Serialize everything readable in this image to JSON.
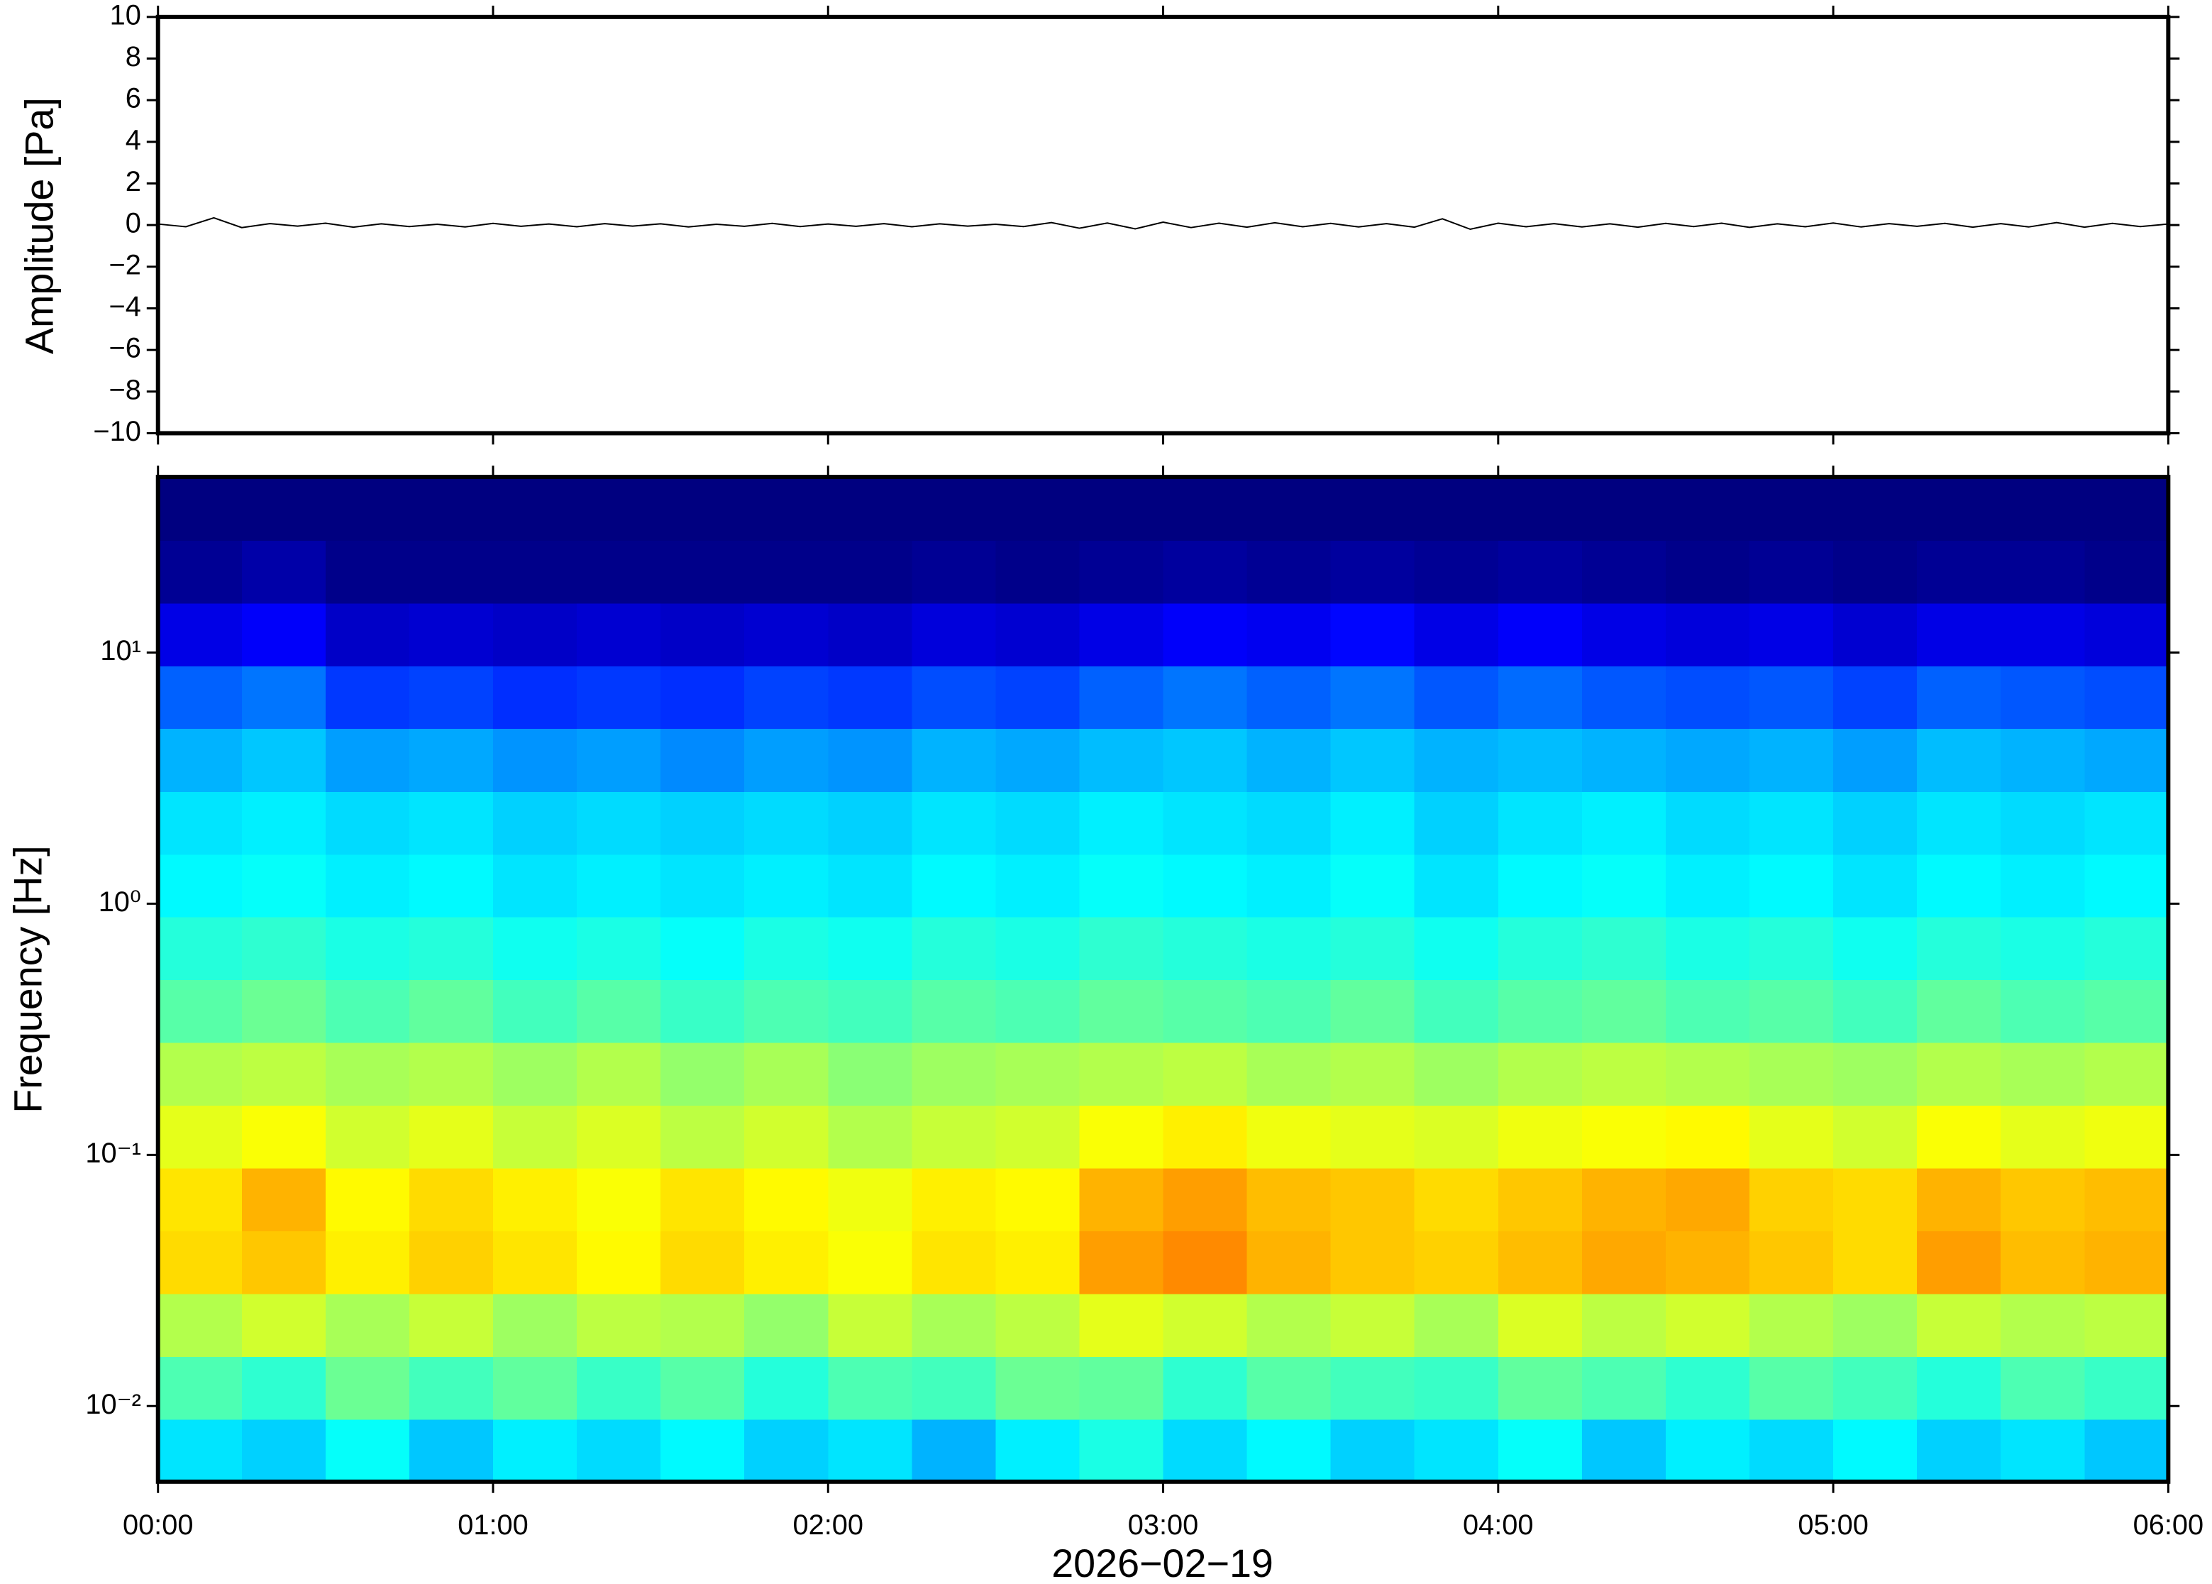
{
  "chart_data": [
    {
      "type": "line",
      "ylabel": "Amplitude [Pa]",
      "color": "#000000",
      "xlim": [
        0,
        360
      ],
      "ylim": [
        -10,
        10
      ],
      "yticks": [
        {
          "value": -10,
          "label": "−10"
        },
        {
          "value": -8,
          "label": "−8"
        },
        {
          "value": -6,
          "label": "−6"
        },
        {
          "value": -4,
          "label": "−4"
        },
        {
          "value": -2,
          "label": "−2"
        },
        0,
        2,
        4,
        6,
        8,
        10
      ],
      "x": [
        0,
        5,
        10,
        15,
        20,
        25,
        30,
        35,
        40,
        45,
        50,
        55,
        60,
        65,
        70,
        75,
        80,
        85,
        90,
        95,
        100,
        105,
        110,
        115,
        120,
        125,
        130,
        135,
        140,
        145,
        150,
        155,
        160,
        165,
        170,
        175,
        180,
        185,
        190,
        195,
        200,
        205,
        210,
        215,
        220,
        225,
        230,
        235,
        240,
        245,
        250,
        255,
        260,
        265,
        270,
        275,
        280,
        285,
        290,
        295,
        300,
        305,
        310,
        315,
        320,
        325,
        330,
        335,
        340,
        345,
        350,
        355,
        360
      ],
      "values": [
        0.05,
        -0.08,
        0.35,
        -0.12,
        0.07,
        -0.05,
        0.09,
        -0.1,
        0.06,
        -0.07,
        0.04,
        -0.09,
        0.08,
        -0.06,
        0.05,
        -0.08,
        0.07,
        -0.05,
        0.06,
        -0.09,
        0.04,
        -0.06,
        0.08,
        -0.07,
        0.05,
        -0.06,
        0.07,
        -0.08,
        0.06,
        -0.05,
        0.04,
        -0.07,
        0.12,
        -0.15,
        0.1,
        -0.18,
        0.14,
        -0.12,
        0.09,
        -0.1,
        0.11,
        -0.08,
        0.08,
        -0.09,
        0.07,
        -0.1,
        0.3,
        -0.2,
        0.09,
        -0.08,
        0.07,
        -0.09,
        0.06,
        -0.1,
        0.08,
        -0.07,
        0.09,
        -0.11,
        0.06,
        -0.08,
        0.1,
        -0.09,
        0.07,
        -0.06,
        0.08,
        -0.1,
        0.07,
        -0.09,
        0.12,
        -0.1,
        0.08,
        -0.07,
        0.05
      ]
    },
    {
      "type": "spectrogram",
      "ylabel": "Frequency [Hz]",
      "xlabel": "2026−02−19",
      "colormap": "jet",
      "zlim": [
        0,
        1
      ],
      "ylog": true,
      "xlim": [
        0,
        360
      ],
      "xticks": [
        {
          "value": 0,
          "label": "00:00"
        },
        {
          "value": 60,
          "label": "01:00"
        },
        {
          "value": 120,
          "label": "02:00"
        },
        {
          "value": 180,
          "label": "03:00"
        },
        {
          "value": 240,
          "label": "04:00"
        },
        {
          "value": 300,
          "label": "05:00"
        },
        {
          "value": 360,
          "label": "06:00"
        }
      ],
      "ylim": [
        0.005,
        50
      ],
      "yticks": [
        {
          "value": 0.01,
          "label": "10⁻²"
        },
        {
          "value": 0.1,
          "label": "10⁻¹"
        },
        {
          "value": 1,
          "label": "10⁰"
        },
        {
          "value": 10,
          "label": "10¹"
        }
      ],
      "x_edges": [
        0,
        15,
        30,
        45,
        60,
        75,
        90,
        105,
        120,
        135,
        150,
        165,
        180,
        195,
        210,
        225,
        240,
        255,
        270,
        285,
        300,
        315,
        330,
        345,
        360
      ],
      "y_edges": [
        0.005,
        0.0089,
        0.0158,
        0.0281,
        0.05,
        0.0889,
        0.158,
        0.281,
        0.5,
        0.889,
        1.58,
        2.81,
        5,
        8.89,
        15.8,
        28.1,
        50
      ],
      "values": [
        [
          0.35,
          0.33,
          0.38,
          0.32,
          0.36,
          0.34,
          0.37,
          0.33,
          0.35,
          0.3,
          0.36,
          0.4,
          0.34,
          0.37,
          0.33,
          0.35,
          0.38,
          0.32,
          0.36,
          0.34,
          0.37,
          0.33,
          0.35,
          0.32
        ],
        [
          0.45,
          0.42,
          0.48,
          0.44,
          0.47,
          0.43,
          0.46,
          0.41,
          0.45,
          0.44,
          0.48,
          0.47,
          0.42,
          0.46,
          0.44,
          0.43,
          0.47,
          0.45,
          0.42,
          0.46,
          0.44,
          0.41,
          0.45,
          0.43
        ],
        [
          0.55,
          0.58,
          0.54,
          0.57,
          0.53,
          0.56,
          0.55,
          0.52,
          0.57,
          0.54,
          0.56,
          0.6,
          0.58,
          0.55,
          0.57,
          0.54,
          0.59,
          0.56,
          0.58,
          0.55,
          0.53,
          0.57,
          0.55,
          0.56
        ],
        [
          0.66,
          0.68,
          0.64,
          0.67,
          0.65,
          0.63,
          0.66,
          0.64,
          0.62,
          0.65,
          0.64,
          0.72,
          0.74,
          0.7,
          0.68,
          0.67,
          0.69,
          0.71,
          0.7,
          0.68,
          0.66,
          0.72,
          0.69,
          0.7
        ],
        [
          0.65,
          0.7,
          0.63,
          0.66,
          0.64,
          0.62,
          0.65,
          0.63,
          0.61,
          0.64,
          0.63,
          0.7,
          0.72,
          0.69,
          0.68,
          0.66,
          0.68,
          0.7,
          0.71,
          0.67,
          0.66,
          0.7,
          0.68,
          0.69
        ],
        [
          0.6,
          0.62,
          0.58,
          0.6,
          0.57,
          0.59,
          0.56,
          0.58,
          0.55,
          0.57,
          0.58,
          0.62,
          0.64,
          0.61,
          0.6,
          0.59,
          0.61,
          0.62,
          0.63,
          0.6,
          0.58,
          0.62,
          0.6,
          0.61
        ],
        [
          0.55,
          0.56,
          0.54,
          0.55,
          0.53,
          0.55,
          0.52,
          0.54,
          0.51,
          0.53,
          0.54,
          0.55,
          0.56,
          0.54,
          0.55,
          0.53,
          0.55,
          0.56,
          0.55,
          0.54,
          0.53,
          0.55,
          0.54,
          0.55
        ],
        [
          0.46,
          0.48,
          0.45,
          0.47,
          0.44,
          0.46,
          0.43,
          0.45,
          0.44,
          0.46,
          0.45,
          0.47,
          0.46,
          0.45,
          0.47,
          0.44,
          0.46,
          0.47,
          0.45,
          0.46,
          0.44,
          0.47,
          0.45,
          0.46
        ],
        [
          0.41,
          0.42,
          0.4,
          0.41,
          0.39,
          0.4,
          0.38,
          0.4,
          0.39,
          0.41,
          0.4,
          0.42,
          0.41,
          0.4,
          0.41,
          0.39,
          0.41,
          0.42,
          0.4,
          0.41,
          0.39,
          0.41,
          0.4,
          0.41
        ],
        [
          0.37,
          0.38,
          0.36,
          0.37,
          0.35,
          0.36,
          0.35,
          0.36,
          0.35,
          0.37,
          0.36,
          0.38,
          0.37,
          0.36,
          0.38,
          0.35,
          0.37,
          0.38,
          0.36,
          0.37,
          0.35,
          0.37,
          0.36,
          0.37
        ],
        [
          0.35,
          0.36,
          0.34,
          0.35,
          0.33,
          0.34,
          0.33,
          0.34,
          0.33,
          0.35,
          0.34,
          0.36,
          0.35,
          0.34,
          0.36,
          0.33,
          0.35,
          0.36,
          0.34,
          0.35,
          0.33,
          0.35,
          0.34,
          0.35
        ],
        [
          0.3,
          0.32,
          0.28,
          0.29,
          0.27,
          0.28,
          0.26,
          0.28,
          0.27,
          0.3,
          0.29,
          0.31,
          0.32,
          0.3,
          0.32,
          0.3,
          0.31,
          0.3,
          0.29,
          0.3,
          0.28,
          0.31,
          0.3,
          0.29
        ],
        [
          0.22,
          0.24,
          0.18,
          0.19,
          0.17,
          0.18,
          0.17,
          0.19,
          0.18,
          0.2,
          0.19,
          0.22,
          0.24,
          0.22,
          0.24,
          0.21,
          0.23,
          0.21,
          0.2,
          0.21,
          0.19,
          0.22,
          0.21,
          0.2
        ],
        [
          0.1,
          0.12,
          0.07,
          0.08,
          0.07,
          0.08,
          0.07,
          0.08,
          0.07,
          0.09,
          0.08,
          0.1,
          0.12,
          0.11,
          0.13,
          0.1,
          0.12,
          0.1,
          0.09,
          0.1,
          0.08,
          0.1,
          0.1,
          0.09
        ],
        [
          0.02,
          0.04,
          0.01,
          0.01,
          0.01,
          0.01,
          0.01,
          0.01,
          0.01,
          0.02,
          0.01,
          0.02,
          0.03,
          0.02,
          0.03,
          0.02,
          0.03,
          0.02,
          0.01,
          0.02,
          0.01,
          0.02,
          0.02,
          0.01
        ],
        [
          0,
          0,
          0,
          0,
          0,
          0,
          0,
          0,
          0,
          0,
          0,
          0,
          0,
          0,
          0,
          0,
          0,
          0,
          0,
          0,
          0,
          0,
          0,
          0
        ]
      ]
    }
  ]
}
